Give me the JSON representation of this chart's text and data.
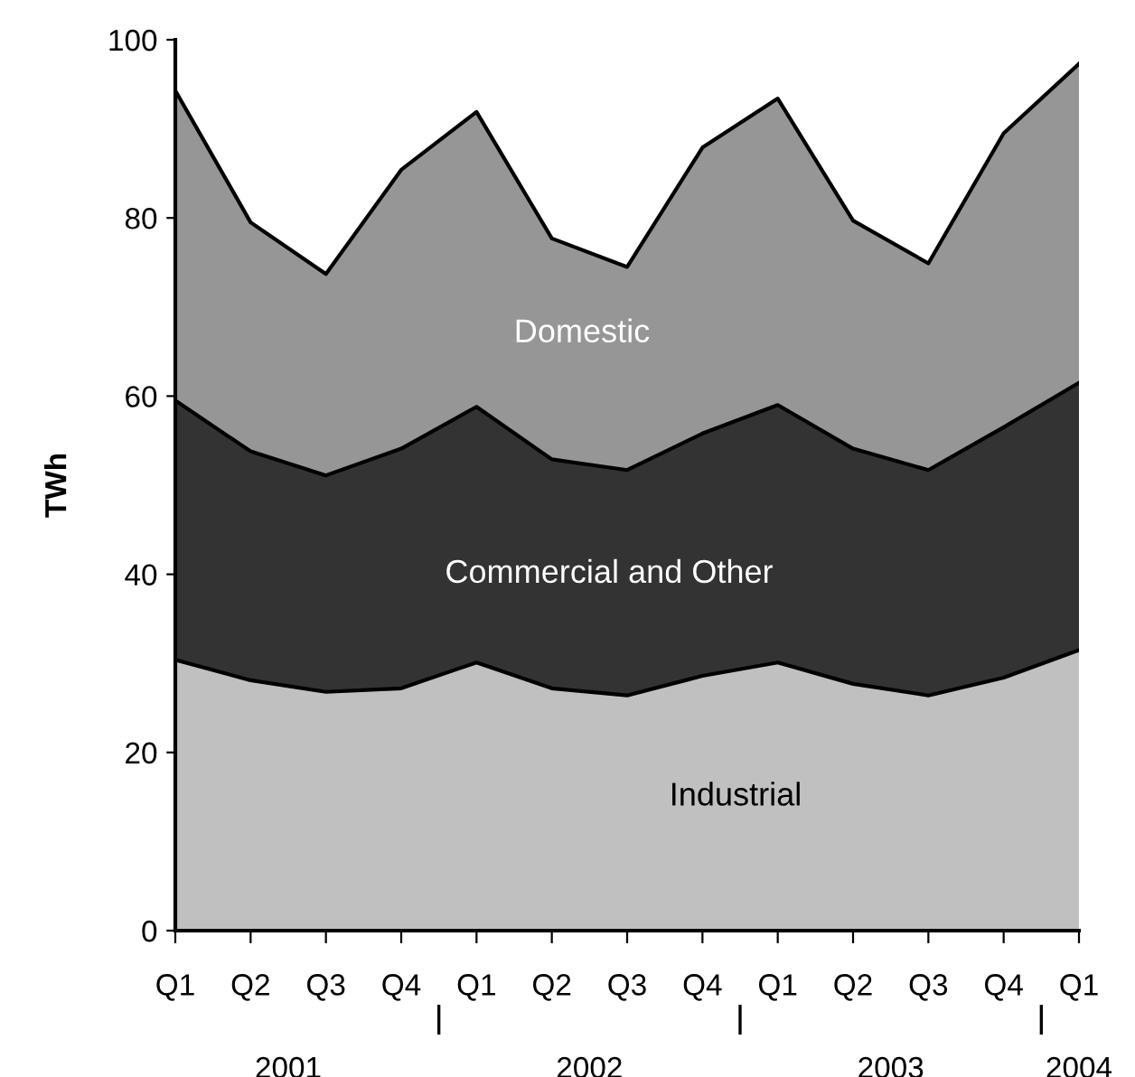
{
  "chart_data": {
    "type": "area",
    "stacked": true,
    "ylabel": "TWh",
    "categories": [
      "Q1",
      "Q2",
      "Q3",
      "Q4",
      "Q1",
      "Q2",
      "Q3",
      "Q4",
      "Q1",
      "Q2",
      "Q3",
      "Q4",
      "Q1"
    ],
    "series": [
      {
        "name": "Industrial",
        "color": "#c0c0c0",
        "values": [
          30.4,
          28.1,
          26.8,
          27.2,
          30.1,
          27.2,
          26.4,
          28.6,
          30.1,
          27.7,
          26.4,
          28.4,
          31.5
        ]
      },
      {
        "name": "Commercial and Other",
        "color": "#333333",
        "values": [
          29.1,
          25.7,
          24.3,
          26.9,
          28.7,
          25.7,
          25.3,
          27.2,
          28.9,
          26.4,
          25.3,
          28.1,
          30.0
        ]
      },
      {
        "name": "Domestic",
        "color": "#969696",
        "values": [
          34.8,
          25.7,
          22.6,
          31.3,
          33.1,
          24.8,
          22.8,
          32.1,
          34.4,
          25.6,
          23.2,
          33.0,
          35.8
        ]
      }
    ],
    "annotations": [
      "2001",
      "2002",
      "2003",
      "2004"
    ],
    "ylim": [
      0,
      100
    ],
    "yticks": [
      0,
      20,
      40,
      60,
      80,
      100
    ],
    "grid": false,
    "legend": false
  }
}
